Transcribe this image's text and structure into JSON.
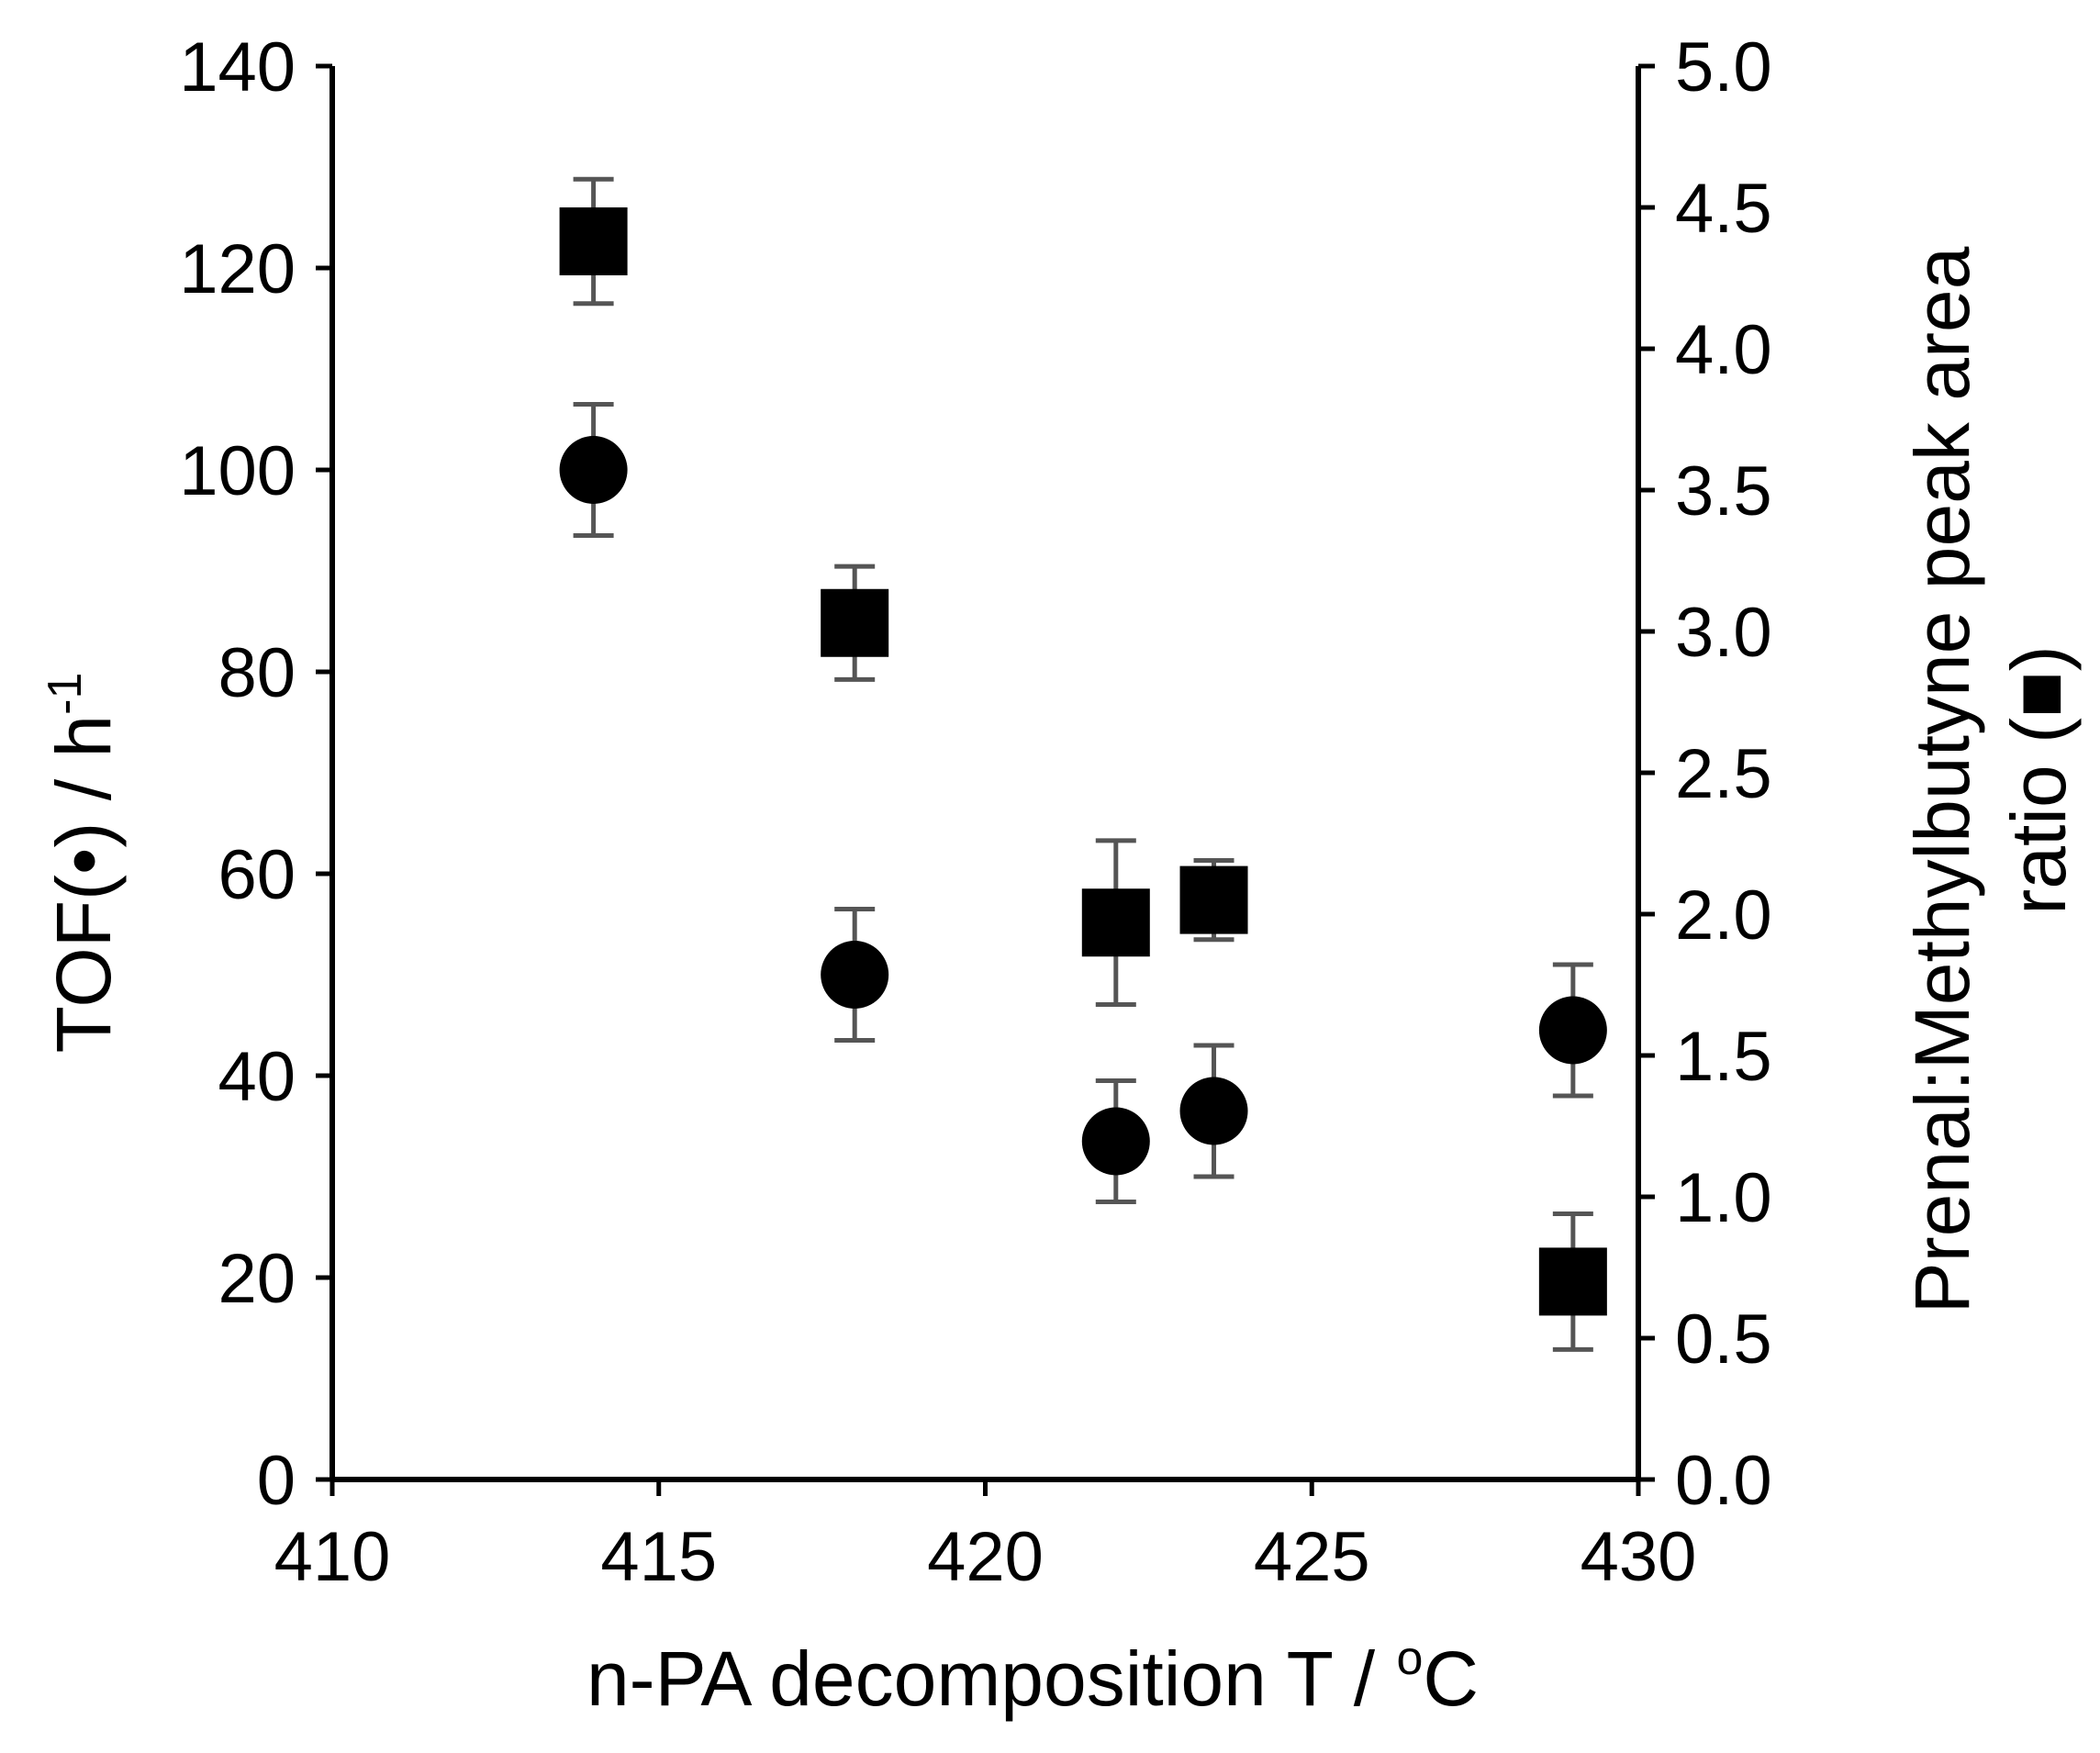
{
  "chart_data": {
    "type": "scatter",
    "x_ticks": [
      "410",
      "415",
      "420",
      "425",
      "430"
    ],
    "y_left_ticks": [
      "0",
      "20",
      "40",
      "60",
      "80",
      "100",
      "120",
      "140"
    ],
    "y_right_ticks": [
      "0.0",
      "0.5",
      "1.0",
      "1.5",
      "2.0",
      "2.5",
      "3.0",
      "3.5",
      "4.0",
      "4.5",
      "5.0"
    ],
    "xlim": [
      410,
      430
    ],
    "y_left_lim": [
      0,
      140
    ],
    "y_right_lim": [
      0,
      5
    ],
    "xlabel_main": "n-PA decomposition T / ",
    "xlabel_sup": "o",
    "xlabel_end": "C",
    "ylabel_left_main": "TOF(•) / h",
    "ylabel_left_sup": "-1",
    "ylabel_right_line1": "Prenal:Methylbutyne peak area",
    "ylabel_right_line2": "ratio (■)",
    "series": [
      {
        "marker": "circle",
        "axis": "left",
        "color": "#000000",
        "points": [
          {
            "x": 414,
            "y": 100,
            "err": 6.5
          },
          {
            "x": 418,
            "y": 50,
            "err": 6.5
          },
          {
            "x": 422,
            "y": 33.5,
            "err": 6
          },
          {
            "x": 423.5,
            "y": 36.5,
            "err": 6.5
          },
          {
            "x": 429,
            "y": 44.5,
            "err": 6.5
          }
        ]
      },
      {
        "marker": "square",
        "axis": "right",
        "color": "#000000",
        "points": [
          {
            "x": 414,
            "y": 4.38,
            "err": 0.22
          },
          {
            "x": 418,
            "y": 3.03,
            "err": 0.2
          },
          {
            "x": 422,
            "y": 1.97,
            "err": 0.29
          },
          {
            "x": 423.5,
            "y": 2.05,
            "err": 0.14
          },
          {
            "x": 429,
            "y": 0.7,
            "err": 0.24
          }
        ]
      }
    ],
    "error_bar_color": "#555555"
  }
}
